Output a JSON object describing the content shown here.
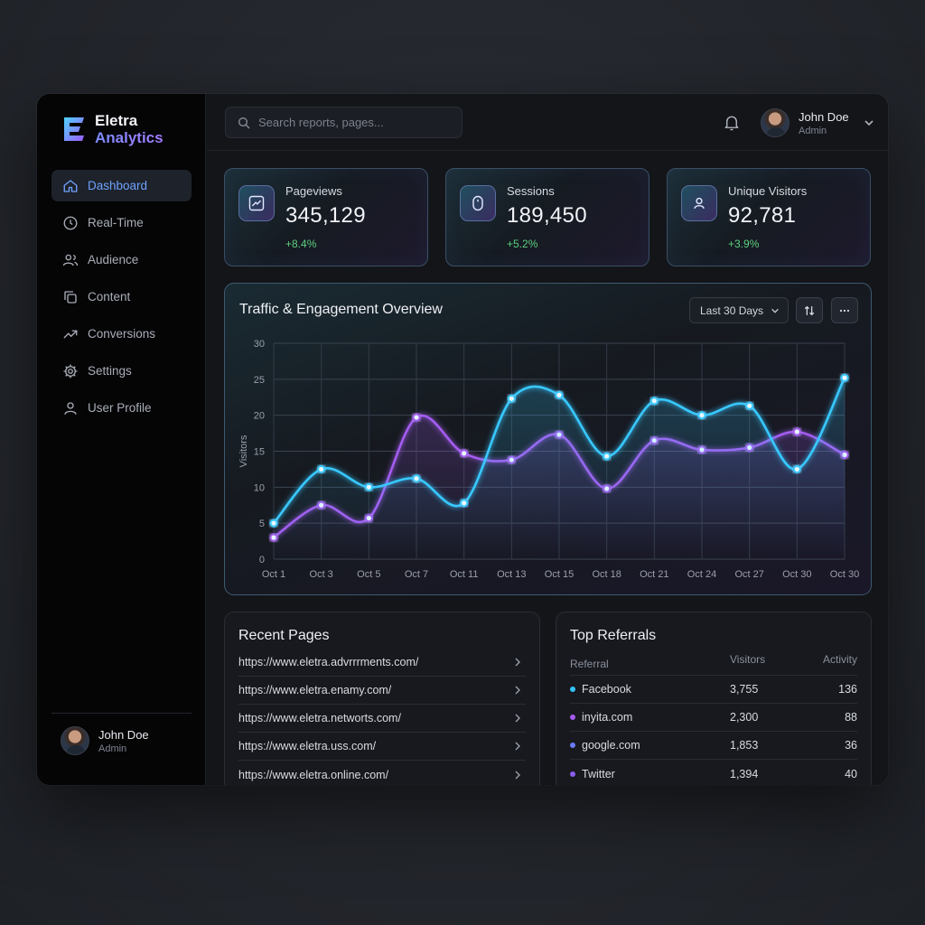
{
  "app": {
    "brand_line1": "Eletra",
    "brand_line2": "Analytics"
  },
  "sidebar": {
    "items": [
      {
        "label": "Dashboard",
        "icon": "home-icon",
        "active": true
      },
      {
        "label": "Real-Time",
        "icon": "clock-icon",
        "active": false
      },
      {
        "label": "Audience",
        "icon": "users-icon",
        "active": false
      },
      {
        "label": "Content",
        "icon": "copy-icon",
        "active": false
      },
      {
        "label": "Conversions",
        "icon": "trend-icon",
        "active": false
      },
      {
        "label": "Settings",
        "icon": "gear-icon",
        "active": false
      },
      {
        "label": "User Profile",
        "icon": "user-icon",
        "active": false
      }
    ],
    "user": {
      "name": "John Doe",
      "role": "Admin"
    }
  },
  "topbar": {
    "search_placeholder": "Search reports, pages...",
    "user": {
      "name": "John Doe",
      "role": "Admin"
    }
  },
  "stats": [
    {
      "label": "Pageviews",
      "value": "345,129",
      "delta": "+8.4%",
      "icon": "trend-chart-icon"
    },
    {
      "label": "Sessions",
      "value": "189,450",
      "delta": "+5.2%",
      "icon": "mouse-icon"
    },
    {
      "label": "Unique Visitors",
      "value": "92,781",
      "delta": "+3.9%",
      "icon": "user-icon"
    }
  ],
  "chart": {
    "title": "Traffic & Engagement Overview",
    "range_label": "Last 30 Days"
  },
  "chart_data": {
    "type": "line",
    "title": "Traffic & Engagement Overview",
    "xlabel": "",
    "ylabel": "Visitors",
    "categories": [
      "Oct 1",
      "Oct 3",
      "Oct 5",
      "Oct 7",
      "Oct 11",
      "Oct 13",
      "Oct 15",
      "Oct 18",
      "Oct 21",
      "Oct 24",
      "Oct 27",
      "Oct 30",
      "Oct 30"
    ],
    "ylim": [
      0,
      30
    ],
    "yticks": [
      0,
      5,
      10,
      15,
      20,
      25,
      30
    ],
    "grid": true,
    "series": [
      {
        "color": "#37c8ff",
        "values": [
          5,
          12.5,
          10,
          11.2,
          7.8,
          22.3,
          22.8,
          14.3,
          22,
          20,
          21.3,
          12.5,
          25.2
        ]
      },
      {
        "color": "#a45cf0",
        "values": [
          3,
          7.5,
          5.7,
          19.7,
          14.7,
          13.8,
          17.3,
          9.8,
          16.5,
          15.2,
          15.5,
          17.7,
          14.5
        ]
      }
    ]
  },
  "recent_pages": {
    "title": "Recent Pages",
    "items": [
      "https://www.eletra.advrrrments.com/",
      "https://www.eletra.enamy.com/",
      "https://www.eletra.networts.com/",
      "https://www.eletra.uss.com/",
      "https://www.eletra.online.com/"
    ]
  },
  "top_referrals": {
    "title": "Top Referrals",
    "columns": [
      "Referral",
      "Visitors",
      "Activity"
    ],
    "rows": [
      {
        "name": "Facebook",
        "visitors": "3,755",
        "activity": "136",
        "color": "#34c3ff"
      },
      {
        "name": "inyita.com",
        "visitors": "2,300",
        "activity": "88",
        "color": "#a45cf0"
      },
      {
        "name": "google.com",
        "visitors": "1,853",
        "activity": "36",
        "color": "#6a7bf5"
      },
      {
        "name": "Twitter",
        "visitors": "1,394",
        "activity": "40",
        "color": "#8a5cf0"
      }
    ]
  }
}
